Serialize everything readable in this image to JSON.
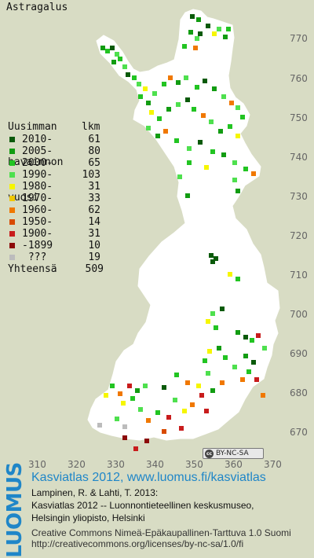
{
  "species": "Astragalus",
  "legend": {
    "heading": [
      "Uusimman",
      "havainnon",
      "vuosi"
    ],
    "count_header": "lkm",
    "rows": [
      {
        "label": "2010-",
        "count": "61",
        "color": "#0a5a0a"
      },
      {
        "label": "2005-",
        "count": "80",
        "color": "#129c12"
      },
      {
        "label": "2000-",
        "count": "65",
        "color": "#22c422"
      },
      {
        "label": "1990-",
        "count": "103",
        "color": "#4ee04e"
      },
      {
        "label": "1980-",
        "count": "31",
        "color": "#f6f600"
      },
      {
        "label": "1970-",
        "count": "33",
        "color": "#f0c800"
      },
      {
        "label": "1960-",
        "count": "62",
        "color": "#f07800"
      },
      {
        "label": "1950-",
        "count": "14",
        "color": "#d84a00"
      },
      {
        "label": "1900-",
        "count": "31",
        "color": "#c81c1c"
      },
      {
        "label": "-1899",
        "count": "10",
        "color": "#8c0a0a"
      },
      {
        "label": " ???",
        "count": "19",
        "color": "#bcbcbc"
      }
    ],
    "total_label": "Yhteensä",
    "total": "509"
  },
  "axes": {
    "x_ticks": [
      "310",
      "320",
      "330",
      "340",
      "350",
      "360",
      "370"
    ],
    "y_ticks": [
      "770",
      "760",
      "750",
      "740",
      "730",
      "720",
      "710",
      "700",
      "690",
      "680",
      "670"
    ]
  },
  "license_badge": "BY-NC-SA",
  "footer": {
    "logo": "LUOMUS",
    "link": "Kasviatlas 2012, www.luomus.fi/kasviatlas",
    "citation": [
      "Lampinen, R. & Lahti, T. 2013:",
      "Kasviatlas 2012 -- Luonnontieteellinen keskusmuseo,",
      "Helsingin yliopisto, Helsinki"
    ],
    "license": [
      "Creative Commons Nimeä-Epäkaupallinen-Tarttuva 1.0 Suomi",
      "http://creativecommons.org/licenses/by-nc-sa/1.0/fi"
    ]
  },
  "colors": {
    "land": "#ffffff",
    "background": "#d8dcc4",
    "brand_blue": "#1f86c8"
  }
}
